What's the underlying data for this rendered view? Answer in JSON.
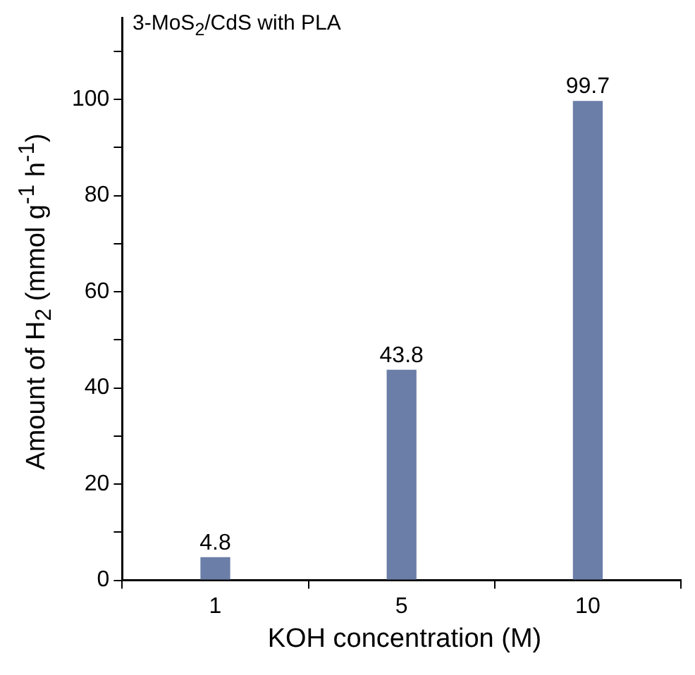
{
  "chart_data": {
    "type": "bar",
    "title": "3-MoS$_{2}$/CdS with PLA",
    "xlabel": "KOH concentration (M)",
    "ylabel": "Amount of H$_{2}$ (mmol g$^{-1}$ h$^{-1}$)",
    "categories": [
      "1",
      "5",
      "10"
    ],
    "values": [
      4.8,
      43.8,
      99.7
    ],
    "color": "#6b7ea8",
    "ylim": [
      0,
      117
    ],
    "yticks": [
      0,
      {
        "value": 10,
        "label": null
      },
      20,
      {
        "value": 30,
        "label": null
      },
      40,
      {
        "value": 50,
        "label": null
      },
      60,
      {
        "value": 70,
        "label": null
      },
      80,
      {
        "value": 90,
        "label": null
      },
      100,
      {
        "value": 110,
        "label": null
      }
    ],
    "grid": false,
    "data_labels": true
  }
}
